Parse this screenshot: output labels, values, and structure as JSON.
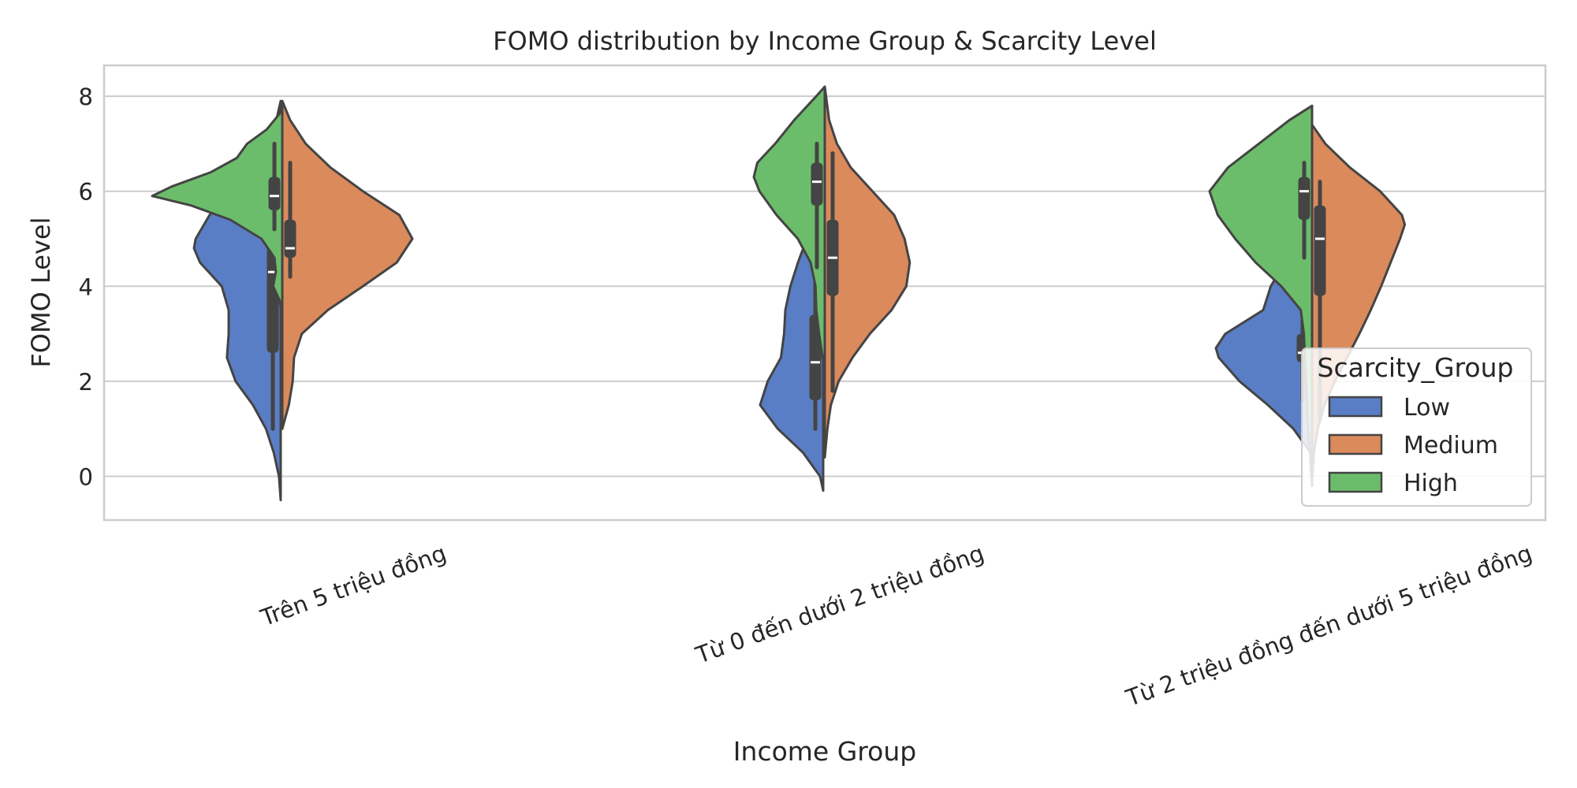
{
  "chart_data": {
    "type": "violin",
    "title": "FOMO distribution by Income Group & Scarcity Level",
    "xlabel": "Income Group",
    "ylabel": "FOMO Level",
    "categories": [
      "Trên 5 triệu đồng",
      "Từ 0 đến dưới 2 triệu đồng",
      "Từ 2 triệu đồng đến dưới 5 triệu đồng"
    ],
    "ylim": [
      -0.9,
      8.6
    ],
    "yticks": [
      0,
      2,
      4,
      6,
      8
    ],
    "grid": true,
    "legend": {
      "title": "Scarcity_Group",
      "position": "lower-right"
    },
    "series": [
      {
        "name": "Low",
        "color": "#5a7ec5",
        "side": "left",
        "groups": [
          {
            "min": -0.5,
            "max": 7.9,
            "q1": 2.6,
            "median": 4.3,
            "q3": 4.9,
            "whisker_low": 1.0,
            "whisker_high": 6.4,
            "profile": [
              [
                -0.5,
                0.0
              ],
              [
                0.0,
                0.02
              ],
              [
                0.5,
                0.08
              ],
              [
                1.0,
                0.17
              ],
              [
                1.5,
                0.32
              ],
              [
                2.0,
                0.52
              ],
              [
                2.5,
                0.62
              ],
              [
                3.0,
                0.6
              ],
              [
                3.5,
                0.6
              ],
              [
                4.0,
                0.68
              ],
              [
                4.5,
                0.93
              ],
              [
                4.8,
                1.0
              ],
              [
                5.0,
                0.98
              ],
              [
                5.5,
                0.82
              ],
              [
                6.0,
                0.6
              ],
              [
                6.5,
                0.34
              ],
              [
                7.0,
                0.16
              ],
              [
                7.5,
                0.05
              ],
              [
                7.9,
                0.0
              ]
            ]
          },
          {
            "min": -0.3,
            "max": 6.3,
            "q1": 1.6,
            "median": 2.4,
            "q3": 3.4,
            "whisker_low": 1.0,
            "whisker_high": 5.0,
            "profile": [
              [
                -0.3,
                0.0
              ],
              [
                0.0,
                0.05
              ],
              [
                0.5,
                0.32
              ],
              [
                1.0,
                0.72
              ],
              [
                1.5,
                1.0
              ],
              [
                2.0,
                0.88
              ],
              [
                2.5,
                0.67
              ],
              [
                3.0,
                0.62
              ],
              [
                3.5,
                0.6
              ],
              [
                4.0,
                0.52
              ],
              [
                4.5,
                0.4
              ],
              [
                5.0,
                0.26
              ],
              [
                5.5,
                0.15
              ],
              [
                6.0,
                0.06
              ],
              [
                6.3,
                0.0
              ]
            ]
          },
          {
            "min": 0.5,
            "max": 5.0,
            "q1": 2.4,
            "median": 2.6,
            "q3": 3.0,
            "whisker_low": 1.6,
            "whisker_high": 3.8,
            "profile": [
              [
                0.5,
                0.0
              ],
              [
                1.0,
                0.18
              ],
              [
                1.5,
                0.45
              ],
              [
                2.0,
                0.75
              ],
              [
                2.5,
                0.97
              ],
              [
                2.7,
                1.0
              ],
              [
                3.0,
                0.9
              ],
              [
                3.5,
                0.5
              ],
              [
                4.0,
                0.42
              ],
              [
                4.5,
                0.27
              ],
              [
                5.0,
                0.0
              ]
            ]
          }
        ]
      },
      {
        "name": "Medium",
        "color": "#db8a5c",
        "side": "right",
        "groups": [
          {
            "min": 1.0,
            "max": 7.9,
            "q1": 4.6,
            "median": 4.8,
            "q3": 5.4,
            "whisker_low": 4.2,
            "whisker_high": 6.6,
            "profile": [
              [
                1.0,
                0.0
              ],
              [
                1.5,
                0.05
              ],
              [
                2.0,
                0.08
              ],
              [
                2.5,
                0.09
              ],
              [
                3.0,
                0.15
              ],
              [
                3.5,
                0.35
              ],
              [
                4.0,
                0.62
              ],
              [
                4.5,
                0.88
              ],
              [
                5.0,
                1.0
              ],
              [
                5.5,
                0.9
              ],
              [
                6.0,
                0.62
              ],
              [
                6.5,
                0.37
              ],
              [
                7.0,
                0.18
              ],
              [
                7.5,
                0.06
              ],
              [
                7.9,
                0.0
              ]
            ]
          },
          {
            "min": 0.4,
            "max": 8.2,
            "q1": 3.8,
            "median": 4.6,
            "q3": 5.4,
            "whisker_low": 1.8,
            "whisker_high": 6.8,
            "profile": [
              [
                0.4,
                0.0
              ],
              [
                1.0,
                0.03
              ],
              [
                1.5,
                0.07
              ],
              [
                2.0,
                0.16
              ],
              [
                2.5,
                0.32
              ],
              [
                3.0,
                0.52
              ],
              [
                3.5,
                0.77
              ],
              [
                4.0,
                0.94
              ],
              [
                4.5,
                0.98
              ],
              [
                5.0,
                0.92
              ],
              [
                5.5,
                0.8
              ],
              [
                6.0,
                0.55
              ],
              [
                6.5,
                0.3
              ],
              [
                7.0,
                0.14
              ],
              [
                7.5,
                0.05
              ],
              [
                8.2,
                0.0
              ]
            ]
          },
          {
            "min": -0.1,
            "max": 7.4,
            "q1": 3.8,
            "median": 5.0,
            "q3": 5.7,
            "whisker_low": 1.2,
            "whisker_high": 6.2,
            "profile": [
              [
                -0.1,
                0.0
              ],
              [
                0.5,
                0.02
              ],
              [
                1.0,
                0.06
              ],
              [
                1.5,
                0.13
              ],
              [
                2.0,
                0.24
              ],
              [
                2.5,
                0.37
              ],
              [
                3.0,
                0.5
              ],
              [
                3.5,
                0.62
              ],
              [
                4.0,
                0.73
              ],
              [
                4.5,
                0.83
              ],
              [
                5.0,
                0.93
              ],
              [
                5.3,
                0.98
              ],
              [
                5.5,
                0.95
              ],
              [
                6.0,
                0.72
              ],
              [
                6.5,
                0.4
              ],
              [
                7.0,
                0.14
              ],
              [
                7.4,
                0.0
              ]
            ]
          }
        ]
      },
      {
        "name": "High",
        "color": "#6cbd6b",
        "side": "left",
        "groups": [
          {
            "min": 3.3,
            "max": 7.7,
            "q1": 5.6,
            "median": 5.9,
            "q3": 6.3,
            "whisker_low": 5.2,
            "whisker_high": 7.0,
            "profile": [
              [
                3.3,
                0.0
              ],
              [
                3.7,
                0.02
              ],
              [
                4.0,
                0.07
              ],
              [
                4.3,
                0.05
              ],
              [
                4.6,
                0.06
              ],
              [
                5.0,
                0.16
              ],
              [
                5.4,
                0.4
              ],
              [
                5.7,
                0.7
              ],
              [
                5.9,
                1.0
              ],
              [
                6.1,
                0.85
              ],
              [
                6.4,
                0.55
              ],
              [
                6.7,
                0.35
              ],
              [
                7.0,
                0.27
              ],
              [
                7.3,
                0.12
              ],
              [
                7.7,
                0.0
              ]
            ]
          },
          {
            "min": 2.2,
            "max": 8.2,
            "q1": 5.7,
            "median": 6.2,
            "q3": 6.6,
            "whisker_low": 4.4,
            "whisker_high": 7.0,
            "profile": [
              [
                2.2,
                0.0
              ],
              [
                2.6,
                0.04
              ],
              [
                3.0,
                0.08
              ],
              [
                3.5,
                0.12
              ],
              [
                4.0,
                0.13
              ],
              [
                4.5,
                0.2
              ],
              [
                5.0,
                0.38
              ],
              [
                5.5,
                0.68
              ],
              [
                6.0,
                0.92
              ],
              [
                6.3,
                1.0
              ],
              [
                6.6,
                0.95
              ],
              [
                7.0,
                0.7
              ],
              [
                7.5,
                0.43
              ],
              [
                8.0,
                0.12
              ],
              [
                8.2,
                0.0
              ]
            ]
          },
          {
            "min": -0.2,
            "max": 7.8,
            "q1": 5.4,
            "median": 6.0,
            "q3": 6.3,
            "whisker_low": 4.6,
            "whisker_high": 6.6,
            "profile": [
              [
                -0.2,
                0.0
              ],
              [
                0.5,
                0.02
              ],
              [
                1.0,
                0.04
              ],
              [
                1.5,
                0.05
              ],
              [
                2.0,
                0.06
              ],
              [
                2.5,
                0.07
              ],
              [
                3.0,
                0.08
              ],
              [
                3.5,
                0.11
              ],
              [
                4.0,
                0.3
              ],
              [
                4.5,
                0.55
              ],
              [
                5.0,
                0.75
              ],
              [
                5.5,
                0.92
              ],
              [
                6.0,
                1.0
              ],
              [
                6.5,
                0.82
              ],
              [
                7.0,
                0.52
              ],
              [
                7.5,
                0.22
              ],
              [
                7.8,
                0.0
              ]
            ]
          }
        ]
      }
    ]
  }
}
